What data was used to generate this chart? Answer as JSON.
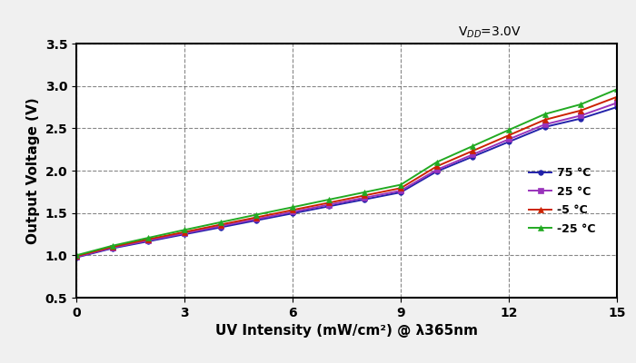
{
  "xlabel": "UV Intensity (mW/cm²) @ λ365nm",
  "ylabel": "Output Voltage (V)",
  "vdd_label": "V$_{DD}$=3.0V",
  "xlim": [
    0,
    15
  ],
  "ylim": [
    0.5,
    3.5
  ],
  "xticks": [
    0,
    3,
    6,
    9,
    12,
    15
  ],
  "yticks": [
    0.5,
    1.0,
    1.5,
    2.0,
    2.5,
    3.0,
    3.5
  ],
  "series": [
    {
      "label": "75 °C",
      "color": "#2222AA",
      "marker": "o",
      "markersize": 4,
      "x": [
        0,
        1,
        2,
        3,
        4,
        5,
        6,
        7,
        8,
        9,
        10,
        11,
        12,
        13,
        14,
        15
      ],
      "y": [
        0.975,
        1.083,
        1.165,
        1.248,
        1.33,
        1.413,
        1.495,
        1.578,
        1.66,
        1.743,
        1.99,
        2.165,
        2.34,
        2.515,
        2.615,
        2.75
      ]
    },
    {
      "label": "25 °C",
      "color": "#9933BB",
      "marker": "s",
      "markersize": 4,
      "x": [
        0,
        1,
        2,
        3,
        4,
        5,
        6,
        7,
        8,
        9,
        10,
        11,
        12,
        13,
        14,
        15
      ],
      "y": [
        0.98,
        1.09,
        1.175,
        1.26,
        1.345,
        1.428,
        1.513,
        1.597,
        1.68,
        1.763,
        2.01,
        2.19,
        2.37,
        2.545,
        2.65,
        2.8
      ]
    },
    {
      "label": "-5 °C",
      "color": "#CC2200",
      "marker": "^",
      "markersize": 4,
      "x": [
        0,
        1,
        2,
        3,
        4,
        5,
        6,
        7,
        8,
        9,
        10,
        11,
        12,
        13,
        14,
        15
      ],
      "y": [
        0.99,
        1.1,
        1.19,
        1.275,
        1.362,
        1.448,
        1.535,
        1.62,
        1.707,
        1.793,
        2.05,
        2.233,
        2.417,
        2.6,
        2.71,
        2.87
      ]
    },
    {
      "label": "-25 °C",
      "color": "#22AA22",
      "marker": "^",
      "markersize": 4,
      "x": [
        0,
        1,
        2,
        3,
        4,
        5,
        6,
        7,
        8,
        9,
        10,
        11,
        12,
        13,
        14,
        15
      ],
      "y": [
        1.0,
        1.113,
        1.207,
        1.3,
        1.39,
        1.48,
        1.568,
        1.657,
        1.745,
        1.833,
        2.1,
        2.29,
        2.48,
        2.667,
        2.783,
        2.96
      ]
    }
  ],
  "grid_color": "#555555",
  "grid_linestyle": "--",
  "background_color": "#f0f0f0",
  "plot_bg_color": "#ffffff",
  "legend_fontsize": 9,
  "fontsize_labels": 11,
  "fontsize_ticks": 10,
  "vdd_fontsize": 10
}
